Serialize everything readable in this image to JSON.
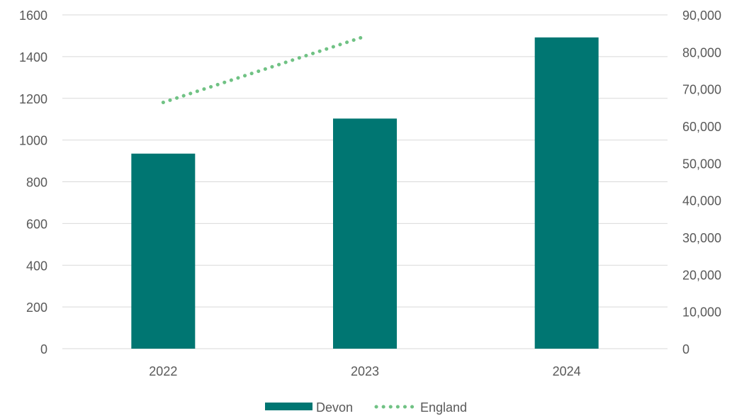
{
  "chart_data": {
    "type": "bar",
    "title": "",
    "xlabel": "",
    "ylabel": "",
    "categories": [
      "2022",
      "2023",
      "2024"
    ],
    "y_left": {
      "lim": [
        0,
        1600
      ],
      "ticks": [
        "0",
        "200",
        "400",
        "600",
        "800",
        "1000",
        "1200",
        "1400",
        "1600"
      ]
    },
    "y_right": {
      "lim": [
        0,
        90000
      ],
      "ticks": [
        "0",
        "10,000",
        "20,000",
        "30,000",
        "40,000",
        "50,000",
        "60,000",
        "70,000",
        "80,000",
        "90,000"
      ]
    },
    "series": [
      {
        "name": "Devon",
        "type": "bar",
        "axis": "left",
        "color": "#007672",
        "values": [
          935,
          1103,
          1492
        ]
      },
      {
        "name": "England",
        "type": "line",
        "style": "dotted",
        "axis": "right",
        "color": "#70c284",
        "values": [
          66400,
          84200,
          null
        ]
      }
    ],
    "grid": true,
    "legend": "bottom"
  }
}
